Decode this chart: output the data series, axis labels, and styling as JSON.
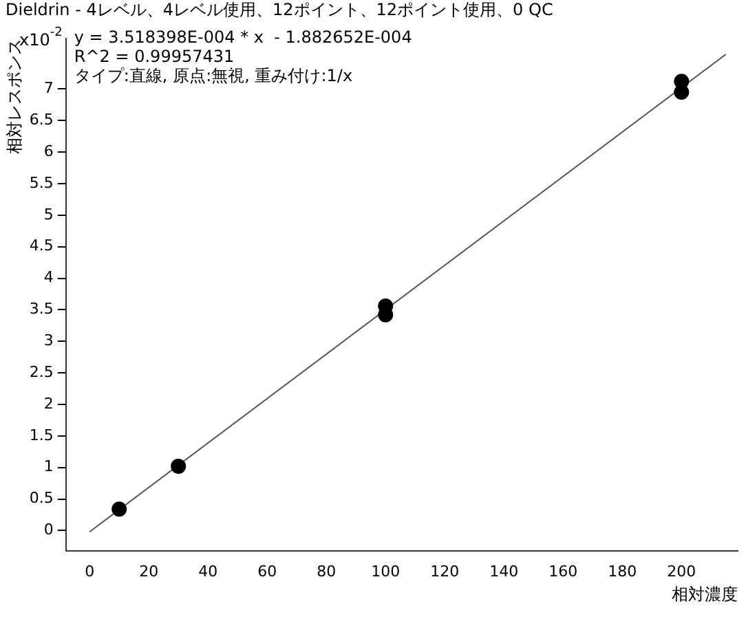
{
  "chart_data": {
    "type": "scatter",
    "title": "Dieldrin - 4レベル、4レベル使用、12ポイント、12ポイント使用、0 QC",
    "xlabel": "相対濃度",
    "ylabel": "相対レスポンス",
    "annotations": [
      "x10$^{-2}$",
      "y = 3.518398E-004 * x  - 1.882652E-004",
      "R^2 = 0.99957431",
      "タイプ:直線, 原点:無視, 重み付け:1/x"
    ],
    "series": [
      {
        "type": "scatter",
        "color": "#000000",
        "x": [
          10,
          30,
          100,
          100,
          200,
          200
        ],
        "values": [
          0.34,
          1.02,
          3.42,
          3.56,
          6.95,
          7.12
        ]
      },
      {
        "type": "line",
        "color": "#555555",
        "marker": "none",
        "x": [
          0,
          215
        ],
        "values": [
          -0.02,
          7.55
        ]
      }
    ],
    "xlim": [
      -8,
      219
    ],
    "xticks": [
      0,
      20,
      40,
      60,
      80,
      100,
      120,
      140,
      160,
      180,
      200
    ],
    "ylim": [
      -0.32,
      7.8
    ],
    "yticks": [
      0,
      0.5,
      1,
      1.5,
      2,
      2.5,
      3,
      3.5,
      4,
      4.5,
      5,
      5.5,
      6,
      6.5,
      7
    ],
    "grid": false,
    "legend": false,
    "marker": "circle",
    "line_style": "solid"
  }
}
